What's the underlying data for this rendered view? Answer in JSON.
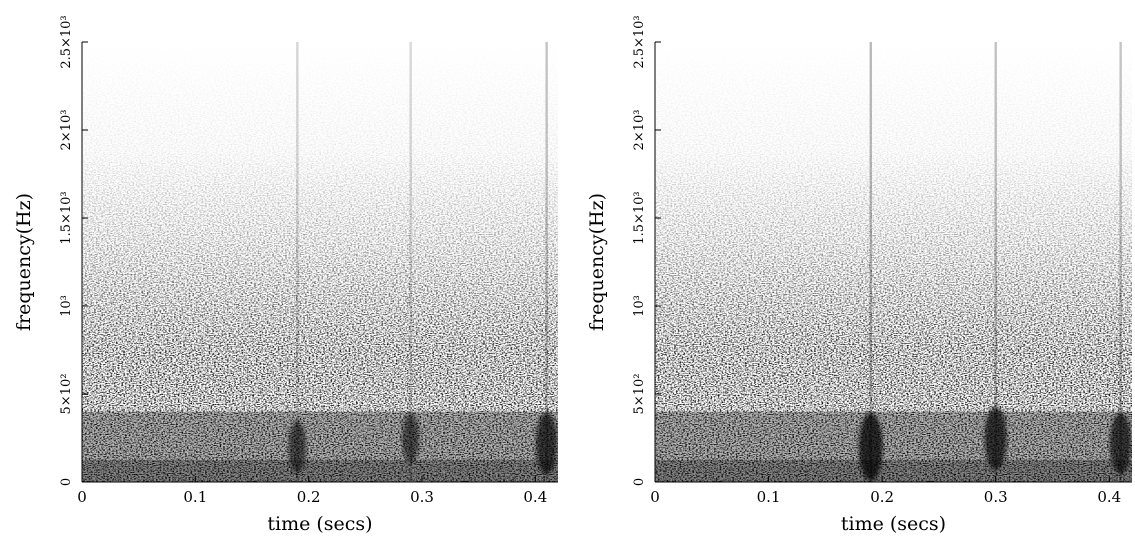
{
  "chart_data": [
    {
      "type": "heatmap",
      "title": "",
      "xlabel": "time (secs)",
      "ylabel": "frequency(Hz)",
      "xlim": [
        0,
        0.42
      ],
      "ylim": [
        0,
        2500
      ],
      "xticks": [
        {
          "value": 0,
          "label": "0"
        },
        {
          "value": 0.1,
          "label": "0.1"
        },
        {
          "value": 0.2,
          "label": "0.2"
        },
        {
          "value": 0.3,
          "label": "0.3"
        },
        {
          "value": 0.4,
          "label": "0.4"
        }
      ],
      "yticks": [
        {
          "value": 0,
          "label": "0"
        },
        {
          "value": 500,
          "label": "5×10²"
        },
        {
          "value": 1000,
          "label": "10³"
        },
        {
          "value": 1500,
          "label": "1.5×10³"
        },
        {
          "value": 2000,
          "label": "2×10³"
        },
        {
          "value": 2500,
          "label": "2.5×10³"
        }
      ],
      "colormap": "grayscale",
      "grid": false,
      "strong_events": [
        {
          "time": 0.19,
          "freq": 200,
          "strength": 0.5
        },
        {
          "time": 0.29,
          "freq": 250,
          "strength": 0.45
        },
        {
          "time": 0.41,
          "freq": 220,
          "strength": 0.8
        }
      ]
    },
    {
      "type": "heatmap",
      "title": "",
      "xlabel": "time (secs)",
      "ylabel": "frequency(Hz)",
      "xlim": [
        0,
        0.42
      ],
      "ylim": [
        0,
        2500
      ],
      "xticks": [
        {
          "value": 0,
          "label": "0"
        },
        {
          "value": 0.1,
          "label": "0.1"
        },
        {
          "value": 0.2,
          "label": "0.2"
        },
        {
          "value": 0.3,
          "label": "0.3"
        },
        {
          "value": 0.4,
          "label": "0.4"
        }
      ],
      "yticks": [
        {
          "value": 0,
          "label": "0"
        },
        {
          "value": 500,
          "label": "5×10²"
        },
        {
          "value": 1000,
          "label": "10³"
        },
        {
          "value": 1500,
          "label": "1.5×10³"
        },
        {
          "value": 2000,
          "label": "2×10³"
        },
        {
          "value": 2500,
          "label": "2.5×10³"
        }
      ],
      "colormap": "grayscale",
      "grid": false,
      "strong_events": [
        {
          "time": 0.19,
          "freq": 200,
          "strength": 1.0
        },
        {
          "time": 0.3,
          "freq": 250,
          "strength": 0.85
        },
        {
          "time": 0.41,
          "freq": 220,
          "strength": 0.8
        }
      ]
    }
  ]
}
